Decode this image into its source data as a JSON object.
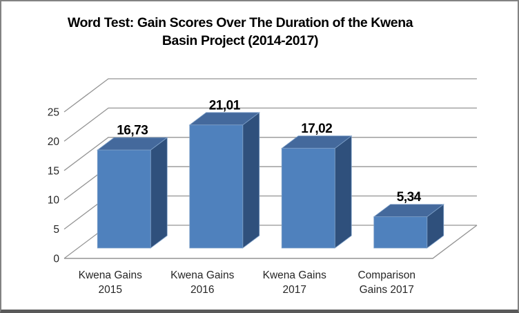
{
  "chart_data": {
    "type": "bar",
    "style": "3d-clustered-column",
    "title": "Word Test: Gain Scores Over The Duration of the Kwena Basin Project (2014-2017)",
    "title_lines": [
      "Word Test: Gain Scores Over The Duration of the Kwena",
      "Basin Project (2014-2017)"
    ],
    "categories": [
      "Kwena Gains 2015",
      "Kwena Gains 2016",
      "Kwena Gains 2017",
      "Comparison Gains 2017"
    ],
    "category_label_lines": [
      [
        "Kwena Gains",
        "2015"
      ],
      [
        "Kwena Gains",
        "2016"
      ],
      [
        "Kwena Gains",
        "2017"
      ],
      [
        "Comparison",
        "Gains 2017"
      ]
    ],
    "values": [
      16.73,
      21.01,
      17.02,
      5.34
    ],
    "value_labels": [
      "16,73",
      "21,01",
      "17,02",
      "5,34"
    ],
    "decimal_separator": ",",
    "y_ticks": [
      0,
      5,
      10,
      15,
      20,
      25
    ],
    "ylim": [
      0,
      25
    ],
    "xlabel": "",
    "ylabel": "",
    "legend": "none",
    "grid": true,
    "colors": {
      "bar_front": "#4f81bd",
      "bar_top": "#44699c",
      "bar_side": "#2f507c",
      "bar_edge": "#7fa1c9",
      "gridline": "#949494",
      "axis_text": "#262626",
      "value_text": "#000000",
      "border": "#828282",
      "border_bottom": "#595959"
    }
  }
}
